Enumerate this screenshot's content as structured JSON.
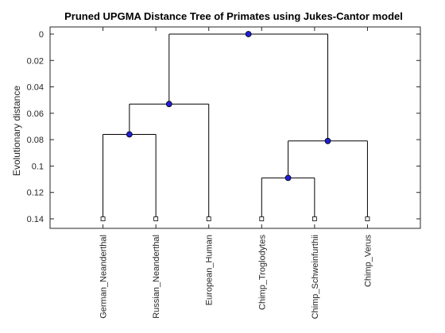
{
  "chart_data": {
    "type": "dendrogram",
    "title": "Pruned UPGMA Distance Tree of Primates using Jukes-Cantor model",
    "ylabel": "Evolutionary distance",
    "xlabel": "",
    "ylim": [
      0,
      0.145
    ],
    "y_reversed": true,
    "yticks": [
      {
        "value": 0,
        "label": "0"
      },
      {
        "value": 0.02,
        "label": "0.02"
      },
      {
        "value": 0.04,
        "label": "0.04"
      },
      {
        "value": 0.06,
        "label": "0.06"
      },
      {
        "value": 0.08,
        "label": "0.08"
      },
      {
        "value": 0.1,
        "label": "0.1"
      },
      {
        "value": 0.12,
        "label": "0.12"
      },
      {
        "value": 0.14,
        "label": "0.14"
      }
    ],
    "leaves": [
      {
        "name": "German_Neanderthal",
        "distance": 0.14
      },
      {
        "name": "Russian_Neanderthal",
        "distance": 0.14
      },
      {
        "name": "European_Human",
        "distance": 0.14
      },
      {
        "name": "Chimp_Troglodytes",
        "distance": 0.14
      },
      {
        "name": "Chimp_Schweinfurthii",
        "distance": 0.14
      },
      {
        "name": "Chimp_Verus",
        "distance": 0.14
      }
    ],
    "internal_nodes": [
      {
        "id": "n1",
        "children": [
          "German_Neanderthal",
          "Russian_Neanderthal"
        ],
        "distance": 0.076
      },
      {
        "id": "n2",
        "children": [
          "n1",
          "European_Human"
        ],
        "distance": 0.053
      },
      {
        "id": "n3",
        "children": [
          "Chimp_Troglodytes",
          "Chimp_Schweinfurthii"
        ],
        "distance": 0.109
      },
      {
        "id": "n4",
        "children": [
          "n3",
          "Chimp_Verus"
        ],
        "distance": 0.081
      },
      {
        "id": "root",
        "children": [
          "n2",
          "n4"
        ],
        "distance": 0
      }
    ],
    "colors": {
      "node": "#1f1fd6",
      "leaf": "#ffffff",
      "line": "#000000"
    },
    "grid": false,
    "legend": "none"
  }
}
